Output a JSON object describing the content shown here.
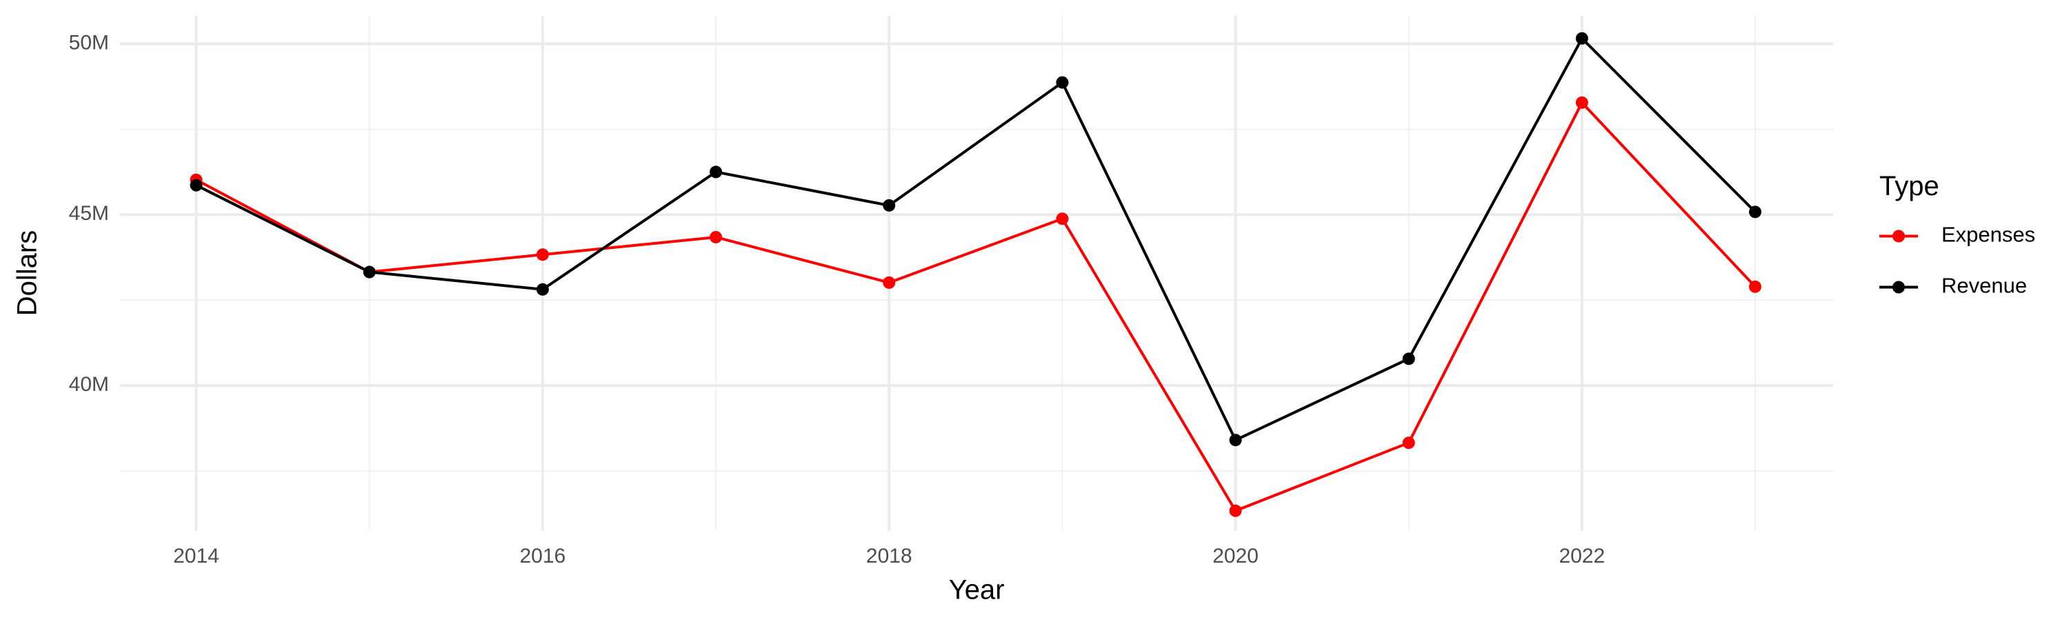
{
  "chart_data": {
    "type": "line",
    "x_label": "Year",
    "y_label": "Dollars",
    "legend_title": "Type",
    "legend_position": "right",
    "grid": true,
    "x": [
      2014,
      2015,
      2016,
      2017,
      2018,
      2019,
      2020,
      2021,
      2022,
      2023
    ],
    "series": [
      {
        "name": "Expenses",
        "color": "#ff0000",
        "values": [
          46020000,
          43320000,
          43830000,
          44340000,
          43010000,
          44880000,
          36330000,
          38320000,
          48280000,
          42890000
        ]
      },
      {
        "name": "Revenue",
        "color": "#000000",
        "values": [
          45860000,
          43320000,
          42810000,
          46250000,
          45270000,
          48870000,
          38400000,
          40780000,
          50160000,
          45080000
        ]
      }
    ],
    "xlim": [
      2013.56,
      2023.45
    ],
    "xticks": [
      2014,
      2016,
      2018,
      2020,
      2022
    ],
    "ylim": [
      35740000,
      50820000
    ],
    "yticks": [
      {
        "value": 40000000,
        "label": "40M"
      },
      {
        "value": 45000000,
        "label": "45M"
      },
      {
        "value": 50000000,
        "label": "50M"
      }
    ]
  }
}
